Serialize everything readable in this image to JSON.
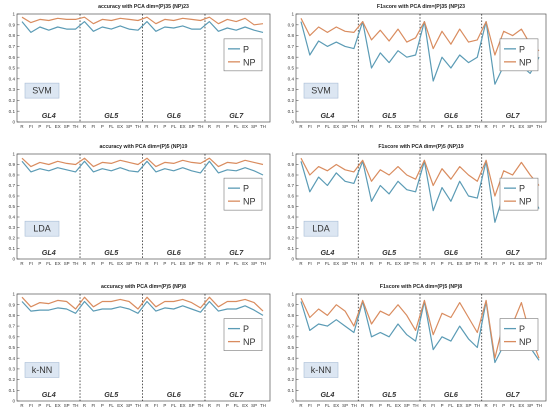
{
  "chart_data": [
    {
      "type": "line",
      "title": "accuracy with PCA dim=(P)35 (NP)23",
      "classifier": "SVM",
      "ylim": [
        0,
        1
      ],
      "yticks": [
        "0",
        "0.1",
        "0.2",
        "0.3",
        "0.4",
        "0.5",
        "0.6",
        "0.7",
        "0.8",
        "0.9",
        "1"
      ],
      "groups": [
        "GL4",
        "GL5",
        "GL6",
        "GL7"
      ],
      "x": [
        "R",
        "FI",
        "P",
        "FL",
        "EX",
        "SP",
        "TH",
        "R",
        "FI",
        "P",
        "FL",
        "EX",
        "SP",
        "TH",
        "R",
        "FI",
        "P",
        "FL",
        "EX",
        "SP",
        "TH",
        "R",
        "FI",
        "P",
        "FL",
        "EX",
        "SP",
        "TH"
      ],
      "legend_position": "right",
      "series": [
        {
          "name": "P",
          "color": "#5b9bb5",
          "values": [
            0.93,
            0.83,
            0.88,
            0.85,
            0.88,
            0.86,
            0.86,
            0.93,
            0.84,
            0.88,
            0.86,
            0.89,
            0.86,
            0.85,
            0.93,
            0.84,
            0.88,
            0.87,
            0.89,
            0.86,
            0.86,
            0.93,
            0.84,
            0.87,
            0.85,
            0.88,
            0.85,
            0.83
          ]
        },
        {
          "name": "NP",
          "color": "#d98c5f",
          "values": [
            0.97,
            0.92,
            0.95,
            0.94,
            0.96,
            0.95,
            0.95,
            0.97,
            0.91,
            0.95,
            0.94,
            0.96,
            0.95,
            0.94,
            0.97,
            0.91,
            0.95,
            0.94,
            0.96,
            0.95,
            0.94,
            0.97,
            0.91,
            0.95,
            0.93,
            0.96,
            0.9,
            0.91
          ]
        }
      ]
    },
    {
      "type": "line",
      "title": "F1score with PCA dim=(P)35 (NP)23",
      "classifier": "SVM",
      "ylim": [
        0,
        1
      ],
      "yticks": [
        "0",
        "0.1",
        "0.2",
        "0.3",
        "0.4",
        "0.5",
        "0.6",
        "0.7",
        "0.8",
        "0.9",
        "1"
      ],
      "groups": [
        "GL4",
        "GL5",
        "GL6",
        "GL7"
      ],
      "x": [
        "R",
        "FI",
        "P",
        "FL",
        "EX",
        "SP",
        "TH",
        "R",
        "FI",
        "P",
        "FL",
        "EX",
        "SP",
        "TH",
        "R",
        "FI",
        "P",
        "FL",
        "EX",
        "SP",
        "TH",
        "R",
        "FI",
        "P",
        "FL",
        "EX",
        "SP",
        "TH"
      ],
      "legend_position": "right",
      "series": [
        {
          "name": "P",
          "color": "#5b9bb5",
          "values": [
            0.93,
            0.62,
            0.75,
            0.7,
            0.74,
            0.7,
            0.68,
            0.93,
            0.5,
            0.64,
            0.55,
            0.66,
            0.6,
            0.62,
            0.93,
            0.38,
            0.6,
            0.5,
            0.62,
            0.55,
            0.6,
            0.93,
            0.35,
            0.52,
            0.48,
            0.52,
            0.45,
            0.6
          ]
        },
        {
          "name": "NP",
          "color": "#d98c5f",
          "values": [
            0.96,
            0.8,
            0.88,
            0.83,
            0.88,
            0.84,
            0.83,
            0.93,
            0.76,
            0.85,
            0.75,
            0.86,
            0.74,
            0.78,
            0.93,
            0.68,
            0.84,
            0.72,
            0.86,
            0.74,
            0.76,
            0.93,
            0.62,
            0.84,
            0.8,
            0.86,
            0.72,
            0.66
          ]
        }
      ]
    },
    {
      "type": "line",
      "title": "accuracy with PCA dim=(P)5 (NP)19",
      "classifier": "LDA",
      "ylim": [
        0,
        1
      ],
      "yticks": [
        "0",
        "0.1",
        "0.2",
        "0.3",
        "0.4",
        "0.5",
        "0.6",
        "0.7",
        "0.8",
        "0.9",
        "1"
      ],
      "groups": [
        "GL4",
        "GL5",
        "GL6",
        "GL7"
      ],
      "x": [
        "R",
        "FI",
        "P",
        "FL",
        "EX",
        "SP",
        "TH",
        "R",
        "FI",
        "P",
        "FL",
        "EX",
        "SP",
        "TH",
        "R",
        "FI",
        "P",
        "FL",
        "EX",
        "SP",
        "TH",
        "R",
        "FI",
        "P",
        "FL",
        "EX",
        "SP",
        "TH"
      ],
      "legend_position": "right",
      "series": [
        {
          "name": "P",
          "color": "#5b9bb5",
          "values": [
            0.93,
            0.83,
            0.86,
            0.84,
            0.87,
            0.85,
            0.83,
            0.93,
            0.83,
            0.86,
            0.84,
            0.87,
            0.84,
            0.83,
            0.93,
            0.83,
            0.86,
            0.84,
            0.87,
            0.84,
            0.82,
            0.93,
            0.82,
            0.85,
            0.84,
            0.87,
            0.84,
            0.8
          ]
        },
        {
          "name": "NP",
          "color": "#d98c5f",
          "values": [
            0.96,
            0.88,
            0.92,
            0.9,
            0.93,
            0.91,
            0.9,
            0.96,
            0.88,
            0.92,
            0.91,
            0.94,
            0.92,
            0.9,
            0.96,
            0.88,
            0.92,
            0.91,
            0.94,
            0.92,
            0.91,
            0.96,
            0.88,
            0.92,
            0.91,
            0.94,
            0.92,
            0.9
          ]
        }
      ]
    },
    {
      "type": "line",
      "title": "F1score with PCA dim=(P)5 (NP)19",
      "classifier": "LDA",
      "ylim": [
        0,
        1
      ],
      "yticks": [
        "0",
        "0.1",
        "0.2",
        "0.3",
        "0.4",
        "0.5",
        "0.6",
        "0.7",
        "0.8",
        "0.9",
        "1"
      ],
      "groups": [
        "GL4",
        "GL5",
        "GL6",
        "GL7"
      ],
      "x": [
        "R",
        "FI",
        "P",
        "FL",
        "EX",
        "SP",
        "TH",
        "R",
        "FI",
        "P",
        "FL",
        "EX",
        "SP",
        "TH",
        "R",
        "FI",
        "P",
        "FL",
        "EX",
        "SP",
        "TH",
        "R",
        "FI",
        "P",
        "FL",
        "EX",
        "SP",
        "TH"
      ],
      "legend_position": "right",
      "series": [
        {
          "name": "P",
          "color": "#5b9bb5",
          "values": [
            0.93,
            0.64,
            0.78,
            0.7,
            0.82,
            0.74,
            0.72,
            0.93,
            0.55,
            0.7,
            0.62,
            0.74,
            0.66,
            0.64,
            0.93,
            0.46,
            0.68,
            0.55,
            0.74,
            0.6,
            0.58,
            0.93,
            0.35,
            0.62,
            0.55,
            0.75,
            0.62,
            0.48
          ]
        },
        {
          "name": "NP",
          "color": "#d98c5f",
          "values": [
            0.96,
            0.8,
            0.88,
            0.84,
            0.9,
            0.85,
            0.83,
            0.94,
            0.74,
            0.85,
            0.8,
            0.88,
            0.8,
            0.76,
            0.94,
            0.7,
            0.86,
            0.76,
            0.88,
            0.8,
            0.74,
            0.94,
            0.6,
            0.84,
            0.8,
            0.92,
            0.8,
            0.7
          ]
        }
      ]
    },
    {
      "type": "line",
      "title": "accuracy with PCA dim=(P)5 (NP)8",
      "classifier": "k-NN",
      "ylim": [
        0,
        1
      ],
      "yticks": [
        "0",
        "0.1",
        "0.2",
        "0.3",
        "0.4",
        "0.5",
        "0.6",
        "0.7",
        "0.8",
        "0.9",
        "1"
      ],
      "groups": [
        "GL4",
        "GL5",
        "GL6",
        "GL7"
      ],
      "x": [
        "R",
        "FI",
        "P",
        "FL",
        "EX",
        "SP",
        "TH",
        "R",
        "FI",
        "P",
        "FL",
        "EX",
        "SP",
        "TH",
        "R",
        "FI",
        "P",
        "FL",
        "EX",
        "SP",
        "TH",
        "R",
        "FI",
        "P",
        "FL",
        "EX",
        "SP",
        "TH"
      ],
      "legend_position": "right",
      "series": [
        {
          "name": "P",
          "color": "#5b9bb5",
          "values": [
            0.93,
            0.84,
            0.85,
            0.85,
            0.87,
            0.86,
            0.82,
            0.93,
            0.84,
            0.86,
            0.86,
            0.88,
            0.86,
            0.82,
            0.93,
            0.84,
            0.87,
            0.86,
            0.89,
            0.86,
            0.83,
            0.93,
            0.84,
            0.86,
            0.86,
            0.89,
            0.85,
            0.8
          ]
        },
        {
          "name": "NP",
          "color": "#d98c5f",
          "values": [
            0.97,
            0.88,
            0.92,
            0.91,
            0.94,
            0.93,
            0.86,
            0.97,
            0.88,
            0.93,
            0.93,
            0.95,
            0.93,
            0.86,
            0.97,
            0.88,
            0.93,
            0.93,
            0.95,
            0.92,
            0.87,
            0.97,
            0.88,
            0.93,
            0.93,
            0.95,
            0.92,
            0.84
          ]
        }
      ]
    },
    {
      "type": "line",
      "title": "F1score with PCA dim=(P)5 (NP)8",
      "classifier": "k-NN",
      "ylim": [
        0,
        1
      ],
      "yticks": [
        "0",
        "0.1",
        "0.2",
        "0.3",
        "0.4",
        "0.5",
        "0.6",
        "0.7",
        "0.8",
        "0.9",
        "1"
      ],
      "groups": [
        "GL4",
        "GL5",
        "GL6",
        "GL7"
      ],
      "x": [
        "R",
        "FI",
        "P",
        "FL",
        "EX",
        "SP",
        "TH",
        "R",
        "FI",
        "P",
        "FL",
        "EX",
        "SP",
        "TH",
        "R",
        "FI",
        "P",
        "FL",
        "EX",
        "SP",
        "TH",
        "R",
        "FI",
        "P",
        "FL",
        "EX",
        "SP",
        "TH"
      ],
      "legend_position": "right",
      "series": [
        {
          "name": "P",
          "color": "#5b9bb5",
          "values": [
            0.93,
            0.66,
            0.72,
            0.7,
            0.76,
            0.7,
            0.64,
            0.93,
            0.6,
            0.64,
            0.6,
            0.72,
            0.62,
            0.56,
            0.93,
            0.48,
            0.6,
            0.56,
            0.7,
            0.58,
            0.5,
            0.93,
            0.36,
            0.52,
            0.48,
            0.64,
            0.5,
            0.38
          ]
        },
        {
          "name": "NP",
          "color": "#d98c5f",
          "values": [
            0.96,
            0.78,
            0.86,
            0.8,
            0.9,
            0.84,
            0.7,
            0.94,
            0.72,
            0.84,
            0.8,
            0.9,
            0.8,
            0.66,
            0.94,
            0.62,
            0.82,
            0.78,
            0.92,
            0.78,
            0.64,
            0.94,
            0.4,
            0.74,
            0.72,
            0.92,
            0.62,
            0.4
          ]
        }
      ]
    }
  ]
}
